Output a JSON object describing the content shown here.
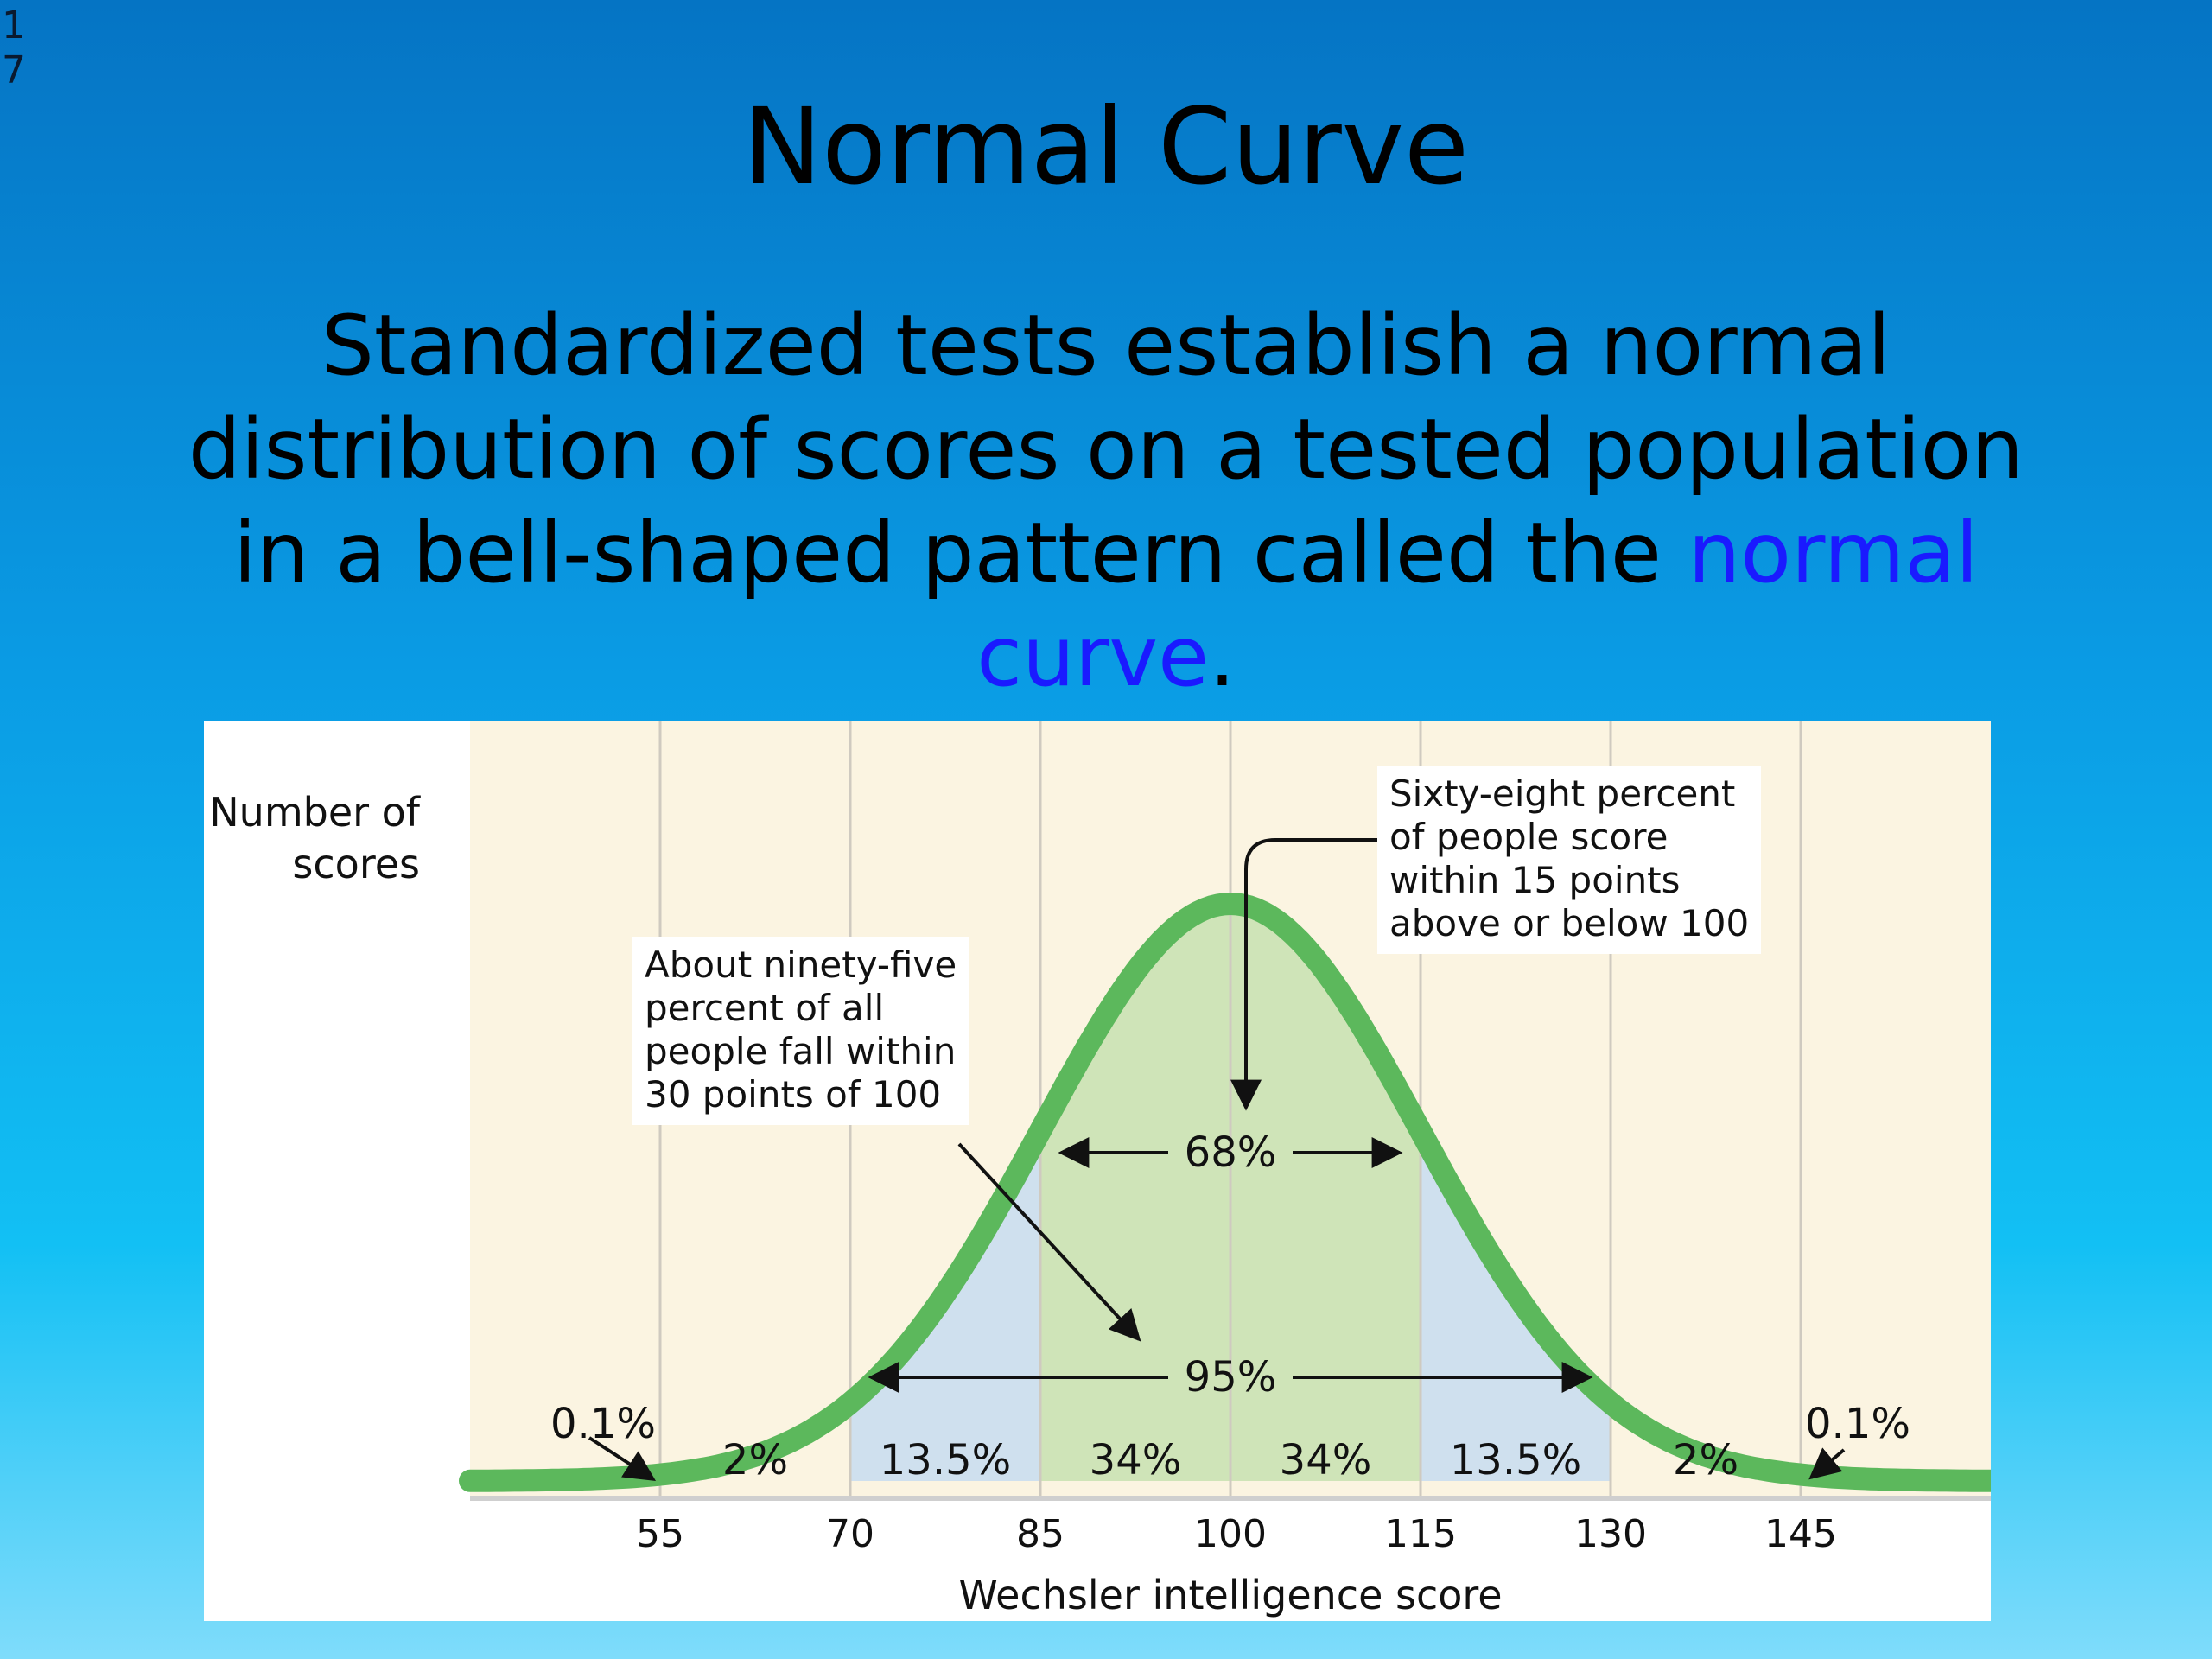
{
  "slide": {
    "number": "17",
    "title": "Normal Curve",
    "body_text": "Standardized tests establish a normal distribution of scores on a tested population in a bell-shaped pattern called the ",
    "highlight_term": "normal curve",
    "trailing_punct": "."
  },
  "colors": {
    "curve": "#5cb85c",
    "band_68": "#cfe4b8",
    "band_95": "#cfe0ee",
    "background_column": "#fbf4e1",
    "highlight_term": "#1a1aff"
  },
  "chart_data": {
    "type": "area",
    "distribution": "normal",
    "mean": 100,
    "sd": 15,
    "xlabel": "Wechsler intelligence score",
    "ylabel_lines": [
      "Number of",
      "scores"
    ],
    "x_ticks": [
      55,
      70,
      85,
      100,
      115,
      130,
      145
    ],
    "xlim": [
      40,
      160
    ],
    "segments": [
      {
        "label": "0.1%",
        "from": 40,
        "to": 55
      },
      {
        "label": "2%",
        "from": 55,
        "to": 70
      },
      {
        "label": "13.5%",
        "from": 70,
        "to": 85
      },
      {
        "label": "34%",
        "from": 85,
        "to": 100
      },
      {
        "label": "34%",
        "from": 100,
        "to": 115
      },
      {
        "label": "13.5%",
        "from": 115,
        "to": 130
      },
      {
        "label": "2%",
        "from": 130,
        "to": 145
      },
      {
        "label": "0.1%",
        "from": 145,
        "to": 160
      }
    ],
    "bands": [
      {
        "label": "68%",
        "from": 85,
        "to": 115
      },
      {
        "label": "95%",
        "from": 70,
        "to": 130
      }
    ],
    "annotations": {
      "sixty_eight_lines": [
        "Sixty-eight percent",
        "of people score",
        "within 15 points",
        "above or below 100"
      ],
      "ninety_five_lines": [
        "About ninety-five",
        "percent of all",
        "people fall within",
        "30 points of 100"
      ]
    }
  }
}
